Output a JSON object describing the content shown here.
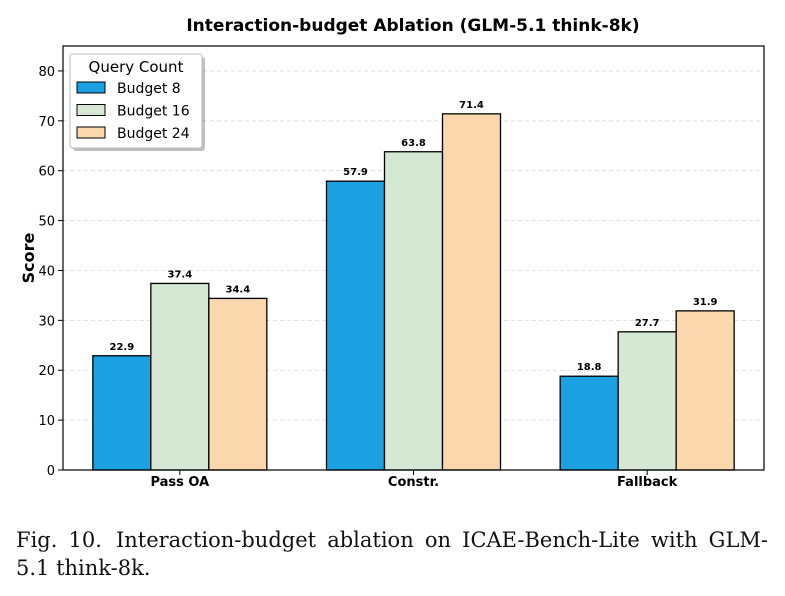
{
  "chart_data": {
    "type": "bar",
    "title": "Interaction-budget Ablation (GLM-5.1 think-8k)",
    "xlabel": "",
    "ylabel": "Score",
    "categories": [
      "Pass OA",
      "Constr.",
      "Fallback"
    ],
    "series": [
      {
        "name": "Budget 8",
        "values": [
          22.9,
          57.9,
          18.8
        ],
        "color": "#1ba1e2"
      },
      {
        "name": "Budget 16",
        "values": [
          37.4,
          63.8,
          27.7
        ],
        "color": "#d5e8d4"
      },
      {
        "name": "Budget 24",
        "values": [
          34.4,
          71.4,
          31.9
        ],
        "color": "#fad7ac"
      }
    ],
    "ylim": [
      0,
      85
    ],
    "yticks": [
      0,
      10,
      20,
      30,
      40,
      50,
      60,
      70,
      80
    ],
    "grid": true,
    "legend": {
      "title": "Query Count",
      "placement": "top-left"
    },
    "data_labels": true
  },
  "caption": {
    "label": "Fig. 10.",
    "text": "Interaction-budget ablation on ICAE-Bench-Lite with GLM-5.1 think-8k."
  }
}
